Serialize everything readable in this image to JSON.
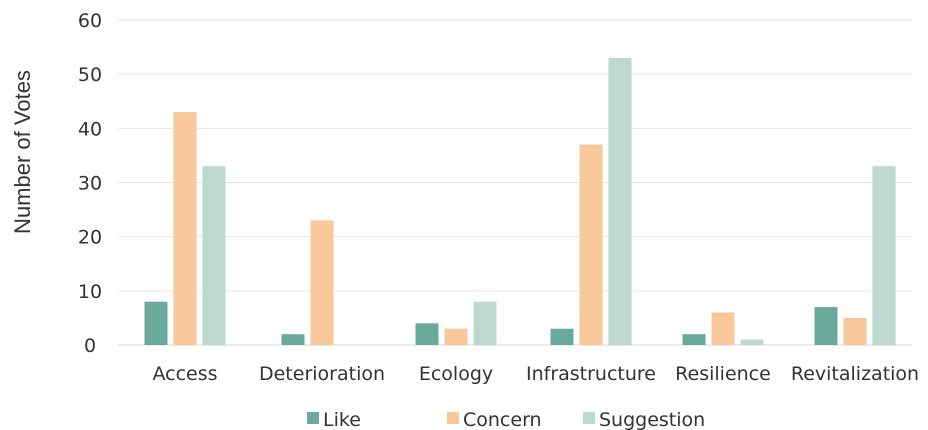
{
  "chart_data": {
    "type": "bar",
    "title": "",
    "xlabel": "",
    "ylabel": "Number of Votes",
    "ylim": [
      0,
      60
    ],
    "yticks": [
      0,
      10,
      20,
      30,
      40,
      50,
      60
    ],
    "grid": true,
    "legend_position": "bottom",
    "categories": [
      "Access",
      "Deterioration",
      "Ecology",
      "Infrastructure",
      "Resilience",
      "Revitalization"
    ],
    "series": [
      {
        "name": "Like",
        "color": "#6aaa9c",
        "values": [
          8,
          2,
          4,
          3,
          2,
          7
        ]
      },
      {
        "name": "Concern",
        "color": "#f8c89b",
        "values": [
          43,
          23,
          3,
          37,
          6,
          5
        ]
      },
      {
        "name": "Suggestion",
        "color": "#bdd8cf",
        "values": [
          33,
          0,
          8,
          53,
          1,
          33
        ]
      }
    ]
  }
}
